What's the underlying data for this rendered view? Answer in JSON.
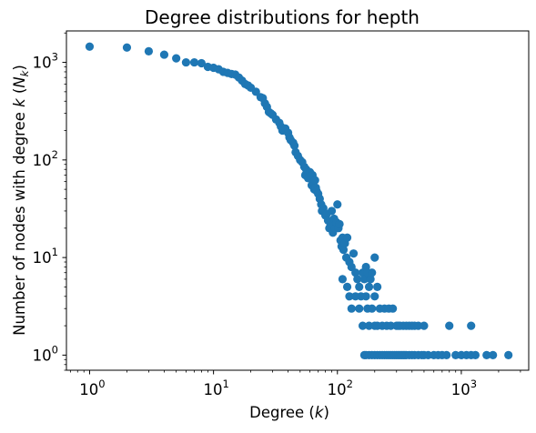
{
  "chart_data": {
    "type": "scatter",
    "title": "Degree distributions for hepth",
    "xlabel": {
      "text": "Degree (",
      "math": "k",
      "suffix": ")"
    },
    "ylabel": {
      "text": "Number of nodes with degree ",
      "math": "k",
      "paren_open": " (",
      "math2": "N",
      "sub": "k",
      "paren_close": ")"
    },
    "xscale": "log",
    "yscale": "log",
    "xlim": [
      0.65,
      3500
    ],
    "ylim": [
      0.7,
      2100
    ],
    "x_ticks": [
      {
        "base": "10",
        "exp": "0",
        "value": 1
      },
      {
        "base": "10",
        "exp": "1",
        "value": 10
      },
      {
        "base": "10",
        "exp": "2",
        "value": 100
      },
      {
        "base": "10",
        "exp": "3",
        "value": 1000
      }
    ],
    "y_ticks": [
      {
        "base": "10",
        "exp": "0",
        "value": 1
      },
      {
        "base": "10",
        "exp": "1",
        "value": 10
      },
      {
        "base": "10",
        "exp": "2",
        "value": 100
      },
      {
        "base": "10",
        "exp": "3",
        "value": 1000
      }
    ],
    "marker_color": "#1f77b4",
    "grid": false,
    "points": [
      [
        1,
        1450
      ],
      [
        2,
        1420
      ],
      [
        3,
        1300
      ],
      [
        4,
        1200
      ],
      [
        5,
        1100
      ],
      [
        6,
        1000
      ],
      [
        7,
        1000
      ],
      [
        8,
        980
      ],
      [
        9,
        900
      ],
      [
        10,
        880
      ],
      [
        11,
        850
      ],
      [
        12,
        800
      ],
      [
        13,
        780
      ],
      [
        14,
        760
      ],
      [
        15,
        750
      ],
      [
        16,
        700
      ],
      [
        17,
        650
      ],
      [
        18,
        600
      ],
      [
        19,
        580
      ],
      [
        20,
        550
      ],
      [
        22,
        500
      ],
      [
        24,
        440
      ],
      [
        25,
        430
      ],
      [
        26,
        380
      ],
      [
        27,
        350
      ],
      [
        28,
        310
      ],
      [
        29,
        300
      ],
      [
        30,
        290
      ],
      [
        32,
        260
      ],
      [
        34,
        240
      ],
      [
        35,
        220
      ],
      [
        36,
        200
      ],
      [
        38,
        210
      ],
      [
        40,
        190
      ],
      [
        41,
        170
      ],
      [
        42,
        160
      ],
      [
        44,
        150
      ],
      [
        45,
        140
      ],
      [
        46,
        120
      ],
      [
        48,
        110
      ],
      [
        50,
        100
      ],
      [
        52,
        95
      ],
      [
        54,
        85
      ],
      [
        55,
        70
      ],
      [
        56,
        80
      ],
      [
        58,
        65
      ],
      [
        60,
        75
      ],
      [
        62,
        55
      ],
      [
        63,
        70
      ],
      [
        64,
        60
      ],
      [
        65,
        50
      ],
      [
        66,
        62
      ],
      [
        67,
        52
      ],
      [
        68,
        48
      ],
      [
        70,
        45
      ],
      [
        72,
        40
      ],
      [
        74,
        35
      ],
      [
        75,
        30
      ],
      [
        77,
        32
      ],
      [
        80,
        27
      ],
      [
        82,
        28
      ],
      [
        84,
        24
      ],
      [
        86,
        20
      ],
      [
        88,
        22
      ],
      [
        90,
        30
      ],
      [
        92,
        18
      ],
      [
        94,
        25
      ],
      [
        96,
        20
      ],
      [
        98,
        23
      ],
      [
        100,
        35
      ],
      [
        102,
        20
      ],
      [
        104,
        22
      ],
      [
        106,
        15
      ],
      [
        108,
        13
      ],
      [
        110,
        16
      ],
      [
        112,
        12
      ],
      [
        115,
        14
      ],
      [
        118,
        10
      ],
      [
        120,
        16
      ],
      [
        125,
        9
      ],
      [
        130,
        8
      ],
      [
        135,
        11
      ],
      [
        140,
        7
      ],
      [
        145,
        6
      ],
      [
        150,
        5
      ],
      [
        155,
        4
      ],
      [
        160,
        7
      ],
      [
        165,
        6
      ],
      [
        170,
        8
      ],
      [
        175,
        7
      ],
      [
        180,
        5
      ],
      [
        185,
        6
      ],
      [
        190,
        7
      ],
      [
        200,
        10
      ],
      [
        110,
        6
      ],
      [
        120,
        5
      ],
      [
        125,
        4
      ],
      [
        130,
        3
      ],
      [
        140,
        4
      ],
      [
        150,
        3
      ],
      [
        160,
        2
      ],
      [
        170,
        4
      ],
      [
        175,
        3
      ],
      [
        180,
        2
      ],
      [
        190,
        3
      ],
      [
        200,
        4
      ],
      [
        210,
        5
      ],
      [
        220,
        3
      ],
      [
        230,
        2
      ],
      [
        240,
        3
      ],
      [
        250,
        2
      ],
      [
        260,
        3
      ],
      [
        270,
        2
      ],
      [
        280,
        3
      ],
      [
        300,
        2
      ],
      [
        310,
        2
      ],
      [
        320,
        2
      ],
      [
        340,
        2
      ],
      [
        360,
        2
      ],
      [
        380,
        2
      ],
      [
        400,
        2
      ],
      [
        420,
        2
      ],
      [
        450,
        2
      ],
      [
        500,
        2
      ],
      [
        200,
        2
      ],
      [
        210,
        2
      ],
      [
        165,
        1
      ],
      [
        170,
        1
      ],
      [
        180,
        1
      ],
      [
        190,
        1
      ],
      [
        200,
        1
      ],
      [
        210,
        1
      ],
      [
        220,
        1
      ],
      [
        230,
        1
      ],
      [
        240,
        1
      ],
      [
        250,
        1
      ],
      [
        260,
        1
      ],
      [
        270,
        1
      ],
      [
        280,
        1
      ],
      [
        290,
        1
      ],
      [
        300,
        1
      ],
      [
        310,
        1
      ],
      [
        320,
        1
      ],
      [
        330,
        1
      ],
      [
        340,
        1
      ],
      [
        350,
        1
      ],
      [
        360,
        1
      ],
      [
        380,
        1
      ],
      [
        400,
        1
      ],
      [
        420,
        1
      ],
      [
        450,
        1
      ],
      [
        480,
        1
      ],
      [
        500,
        1
      ],
      [
        540,
        1
      ],
      [
        600,
        1
      ],
      [
        650,
        1
      ],
      [
        800,
        2
      ],
      [
        1200,
        2
      ],
      [
        700,
        1
      ],
      [
        760,
        1
      ],
      [
        900,
        1
      ],
      [
        1000,
        1
      ],
      [
        1100,
        1
      ],
      [
        1200,
        1
      ],
      [
        1300,
        1
      ],
      [
        1600,
        1
      ],
      [
        1800,
        1
      ],
      [
        2400,
        1
      ]
    ]
  }
}
